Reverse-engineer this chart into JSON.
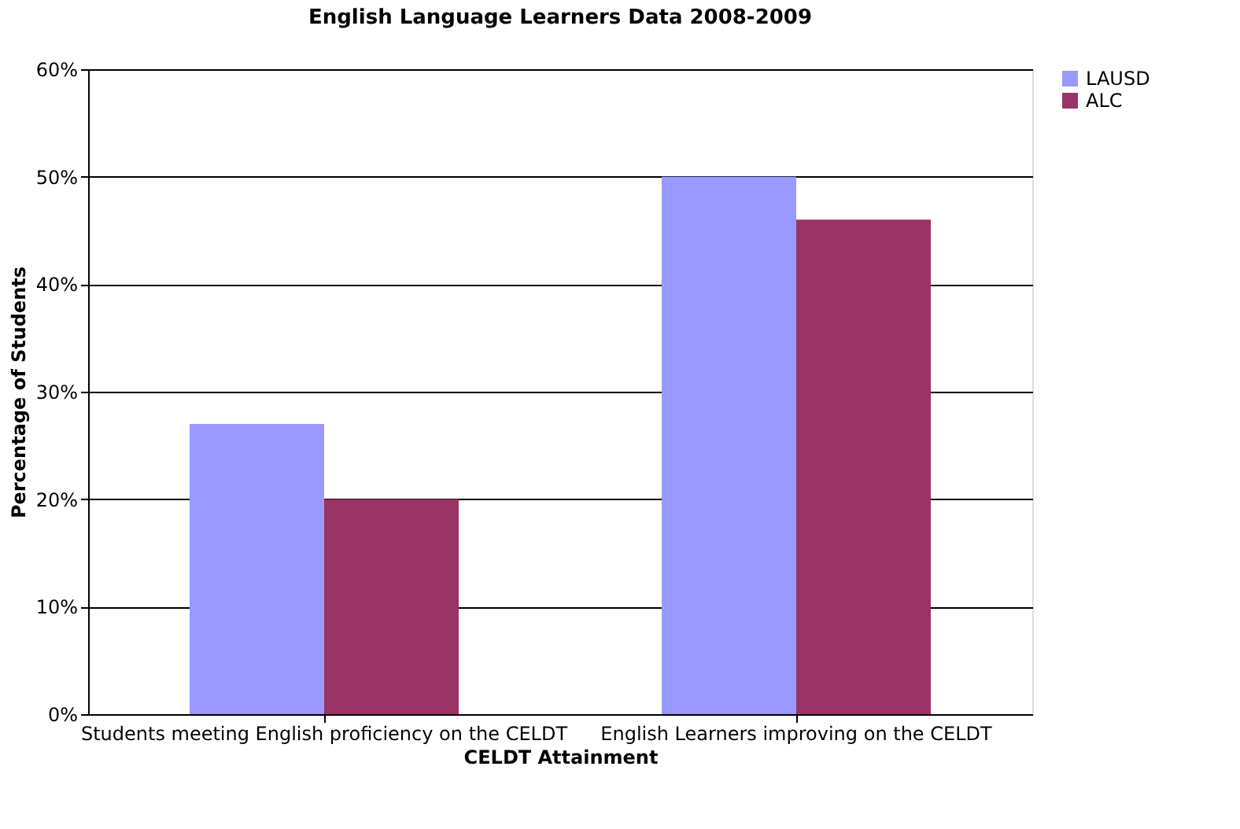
{
  "chart_data": {
    "type": "bar",
    "title": "English Language Learners Data 2008-2009",
    "xlabel": "CELDT Attainment",
    "ylabel": "Percentage of Students",
    "categories": [
      "Students meeting English proficiency on the CELDT",
      "English Learners improving on the CELDT"
    ],
    "series": [
      {
        "name": "LAUSD",
        "color": "#9999ff",
        "values": [
          27,
          50
        ]
      },
      {
        "name": "ALC",
        "color": "#993366",
        "values": [
          20,
          46
        ]
      }
    ],
    "ylim": [
      0,
      60
    ],
    "yticks": [
      {
        "value": 0,
        "label": "0%"
      },
      {
        "value": 10,
        "label": "10%"
      },
      {
        "value": 20,
        "label": "20%"
      },
      {
        "value": 30,
        "label": "30%"
      },
      {
        "value": 40,
        "label": "40%"
      },
      {
        "value": 50,
        "label": "50%"
      },
      {
        "value": 60,
        "label": "60%"
      }
    ],
    "grid": "y",
    "legend": "right"
  }
}
